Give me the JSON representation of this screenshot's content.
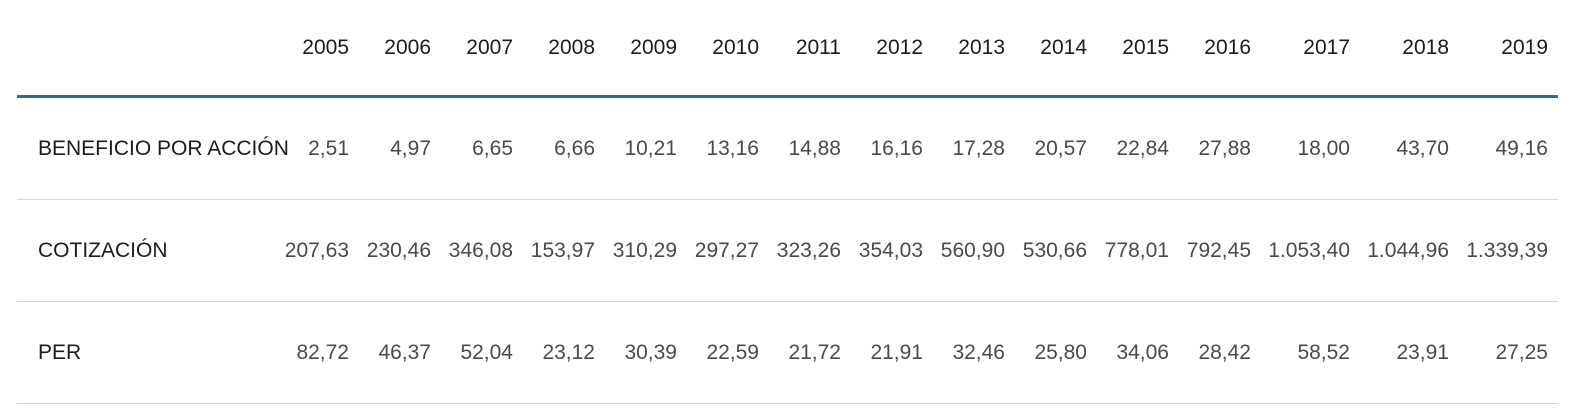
{
  "chart_data": {
    "type": "table",
    "title": "",
    "corner_label": "",
    "columns": [
      "2005",
      "2006",
      "2007",
      "2008",
      "2009",
      "2010",
      "2011",
      "2012",
      "2013",
      "2014",
      "2015",
      "2016",
      "2017",
      "2018",
      "2019"
    ],
    "rows": [
      {
        "label": "BENEFICIO POR ACCIÓN",
        "values": [
          "2,51",
          "4,97",
          "6,65",
          "6,66",
          "10,21",
          "13,16",
          "14,88",
          "16,16",
          "17,28",
          "20,57",
          "22,84",
          "27,88",
          "18,00",
          "43,70",
          "49,16"
        ]
      },
      {
        "label": "COTIZACIÓN",
        "values": [
          "207,63",
          "230,46",
          "346,08",
          "153,97",
          "310,29",
          "297,27",
          "323,26",
          "354,03",
          "560,90",
          "530,66",
          "778,01",
          "792,45",
          "1.053,40",
          "1.044,96",
          "1.339,39"
        ]
      },
      {
        "label": "PER",
        "values": [
          "82,72",
          "46,37",
          "52,04",
          "23,12",
          "30,39",
          "22,59",
          "21,72",
          "21,91",
          "32,46",
          "25,80",
          "34,06",
          "28,42",
          "58,52",
          "23,91",
          "27,25"
        ]
      }
    ],
    "layout": {
      "grid": "horizontal-rules-only",
      "header_rule_color": "#2e6e91",
      "row_rule_color": "#d6d6d6",
      "label_text_color": "#1c1c1c",
      "value_text_color": "#4a4a4a",
      "number_format": "es-ES decimal comma"
    }
  }
}
